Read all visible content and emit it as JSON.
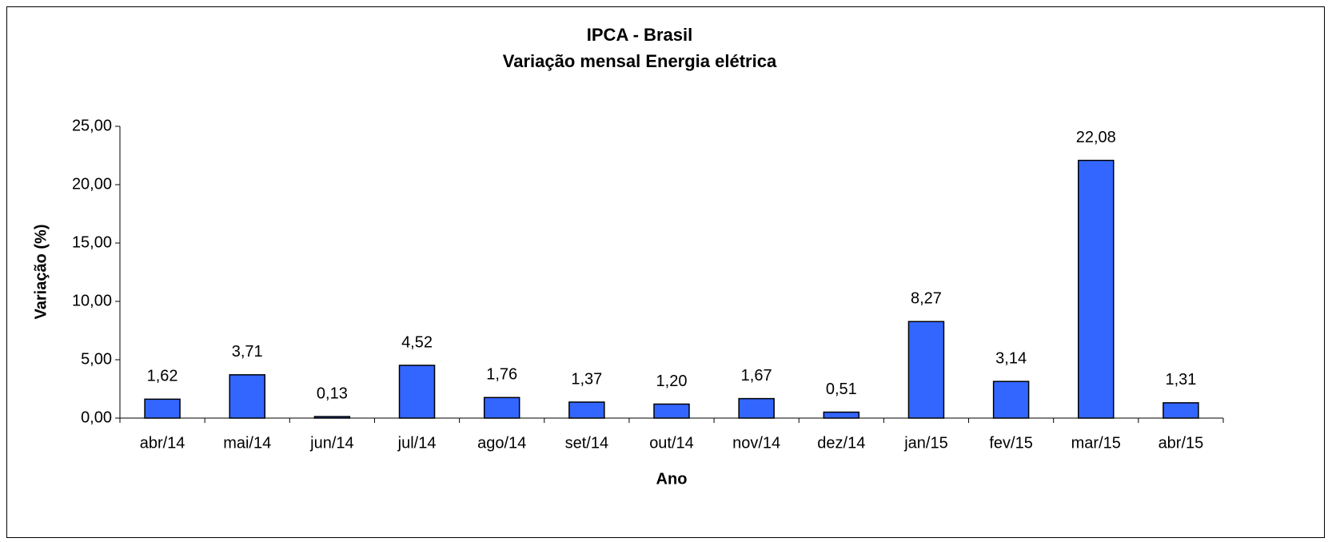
{
  "chart_data": {
    "type": "bar",
    "title": "IPCA - Brasil",
    "subtitle": "Variação mensal Energia elétrica",
    "x_label": "Ano",
    "y_label": "Variação (%)",
    "categories": [
      "abr/14",
      "mai/14",
      "jun/14",
      "jul/14",
      "ago/14",
      "set/14",
      "out/14",
      "nov/14",
      "dez/14",
      "jan/15",
      "fev/15",
      "mar/15",
      "abr/15"
    ],
    "values": [
      1.62,
      3.71,
      0.13,
      4.52,
      1.76,
      1.37,
      1.2,
      1.67,
      0.51,
      8.27,
      3.14,
      22.08,
      1.31
    ],
    "value_labels": [
      "1,62",
      "3,71",
      "0,13",
      "4,52",
      "1,76",
      "1,37",
      "1,20",
      "1,67",
      "0,51",
      "8,27",
      "3,14",
      "22,08",
      "1,31"
    ],
    "color": "#3366ff",
    "ylim": [
      0,
      25
    ],
    "yticks": [
      {
        "value": 0,
        "label": "0,00"
      },
      {
        "value": 5,
        "label": "5,00"
      },
      {
        "value": 10,
        "label": "10,00"
      },
      {
        "value": 15,
        "label": "15,00"
      },
      {
        "value": 20,
        "label": "20,00"
      },
      {
        "value": 25,
        "label": "25,00"
      }
    ],
    "grid": false
  }
}
